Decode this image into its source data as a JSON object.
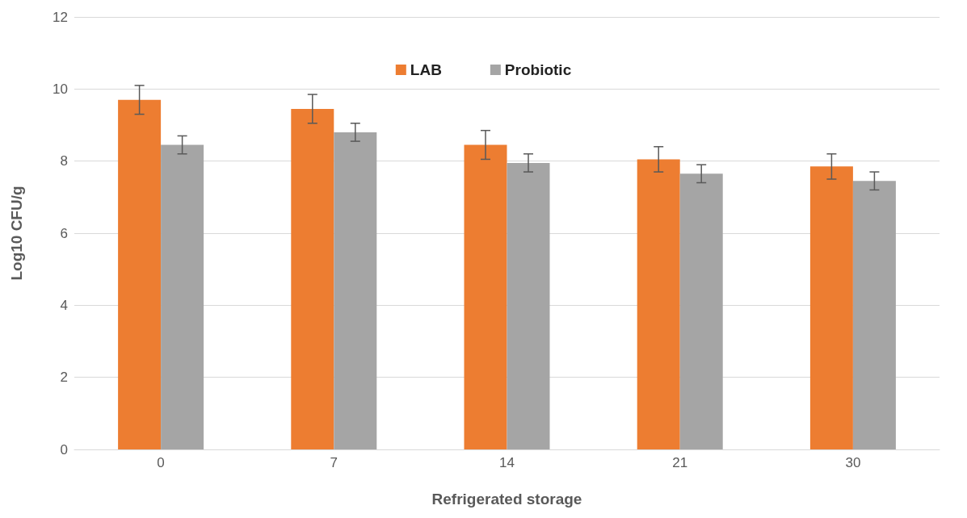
{
  "chart_data": {
    "type": "bar",
    "xlabel": "Refrigerated storage",
    "ylabel": "Log10 CFU/g",
    "categories": [
      "0",
      "7",
      "14",
      "21",
      "30"
    ],
    "series": [
      {
        "name": "LAB",
        "color": "#ed7d31",
        "values": [
          9.7,
          9.45,
          8.45,
          8.05,
          7.85
        ],
        "errors": [
          0.4,
          0.4,
          0.4,
          0.35,
          0.35
        ]
      },
      {
        "name": "Probiotic",
        "color": "#a5a5a5",
        "values": [
          8.45,
          8.8,
          7.95,
          7.65,
          7.45
        ],
        "errors": [
          0.25,
          0.25,
          0.25,
          0.25,
          0.25
        ]
      }
    ],
    "ylim": [
      0,
      12
    ],
    "yticks": [
      0,
      2,
      4,
      6,
      8,
      10,
      12
    ],
    "grid": "y",
    "legend": "top"
  }
}
